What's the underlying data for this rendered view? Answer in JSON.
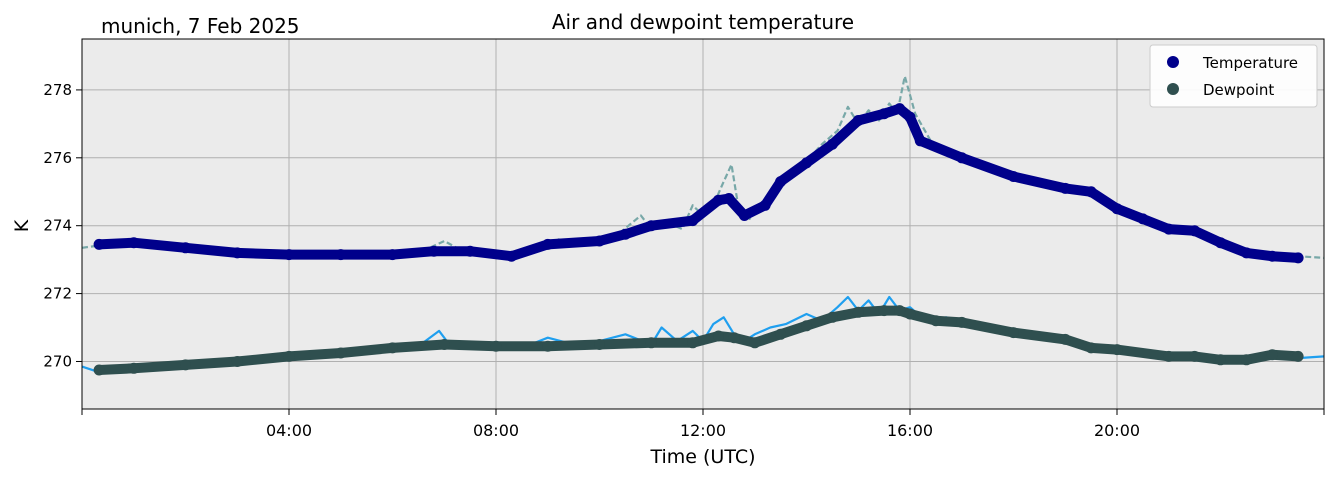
{
  "chart_data": {
    "type": "line",
    "title": "Air and dewpoint temperature",
    "subtitle": "munich, 7 Feb 2025",
    "xlabel": "Time (UTC)",
    "ylabel": "K",
    "xlim": [
      0,
      24
    ],
    "ylim": [
      268.6,
      279.5
    ],
    "x_ticks": [
      {
        "value": 4,
        "label": "04:00"
      },
      {
        "value": 8,
        "label": "08:00"
      },
      {
        "value": 12,
        "label": "12:00"
      },
      {
        "value": 16,
        "label": "16:00"
      },
      {
        "value": 20,
        "label": "20:00"
      }
    ],
    "x_minor_ticks": [
      0,
      24
    ],
    "y_ticks": [
      270,
      272,
      274,
      276,
      278
    ],
    "grid": true,
    "legend_position": "top-right",
    "background_color": "#ebebeb",
    "series": [
      {
        "name": "Temperature",
        "kind": "markers",
        "color": "#00008b",
        "x": [
          0.33,
          1,
          2,
          3,
          4,
          5,
          6,
          6.8,
          7.5,
          8.3,
          9,
          10,
          10.5,
          11,
          11.8,
          12.3,
          12.5,
          12.8,
          13.2,
          13.5,
          14,
          14.5,
          15,
          15.5,
          15.8,
          16,
          16.2,
          17,
          18,
          19,
          19.5,
          20,
          20.5,
          21,
          21.5,
          22,
          22.5,
          23,
          23.5
        ],
        "y": [
          273.45,
          273.5,
          273.35,
          273.2,
          273.15,
          273.15,
          273.15,
          273.25,
          273.25,
          273.1,
          273.45,
          273.55,
          273.75,
          274.0,
          274.15,
          274.75,
          274.8,
          274.3,
          274.6,
          275.3,
          275.85,
          276.4,
          277.1,
          277.3,
          277.45,
          277.2,
          276.5,
          276.0,
          275.45,
          275.1,
          275.0,
          274.5,
          274.2,
          273.9,
          273.85,
          273.5,
          273.2,
          273.1,
          273.05
        ]
      },
      {
        "name": "Dewpoint",
        "kind": "markers",
        "color": "#2f4f4f",
        "x": [
          0.33,
          1,
          2,
          3,
          4,
          5,
          6,
          7,
          8,
          9,
          10,
          11,
          11.8,
          12.3,
          12.6,
          13,
          13.5,
          14,
          14.5,
          15,
          15.5,
          15.8,
          16,
          16.5,
          17,
          18,
          19,
          19.5,
          20,
          21,
          21.5,
          22,
          22.5,
          23,
          23.5
        ],
        "y": [
          269.75,
          269.8,
          269.9,
          270.0,
          270.15,
          270.25,
          270.4,
          270.5,
          270.45,
          270.45,
          270.5,
          270.55,
          270.55,
          270.75,
          270.7,
          270.55,
          270.8,
          271.05,
          271.3,
          271.45,
          271.5,
          271.5,
          271.4,
          271.2,
          271.15,
          270.85,
          270.65,
          270.4,
          270.35,
          270.15,
          270.15,
          270.05,
          270.05,
          270.2,
          270.15
        ]
      },
      {
        "name": "",
        "kind": "raw-line",
        "style": "dashed",
        "color": "#78a8a8",
        "x": [
          0,
          0.5,
          1,
          1.5,
          2,
          3,
          4,
          5,
          6,
          6.5,
          7,
          7.3,
          7.6,
          8,
          8.4,
          8.8,
          9.2,
          9.6,
          10,
          10.4,
          10.8,
          11,
          11.3,
          11.6,
          11.8,
          12,
          12.2,
          12.4,
          12.55,
          12.7,
          12.9,
          13.1,
          13.4,
          13.7,
          14,
          14.3,
          14.6,
          14.8,
          15,
          15.2,
          15.4,
          15.6,
          15.75,
          15.9,
          16.1,
          16.4,
          17,
          18,
          19,
          19.5,
          20,
          20.5,
          21,
          21.5,
          22,
          22.5,
          23,
          23.5,
          24
        ],
        "y": [
          273.35,
          273.45,
          273.55,
          273.5,
          273.4,
          273.2,
          273.15,
          273.15,
          273.15,
          273.2,
          273.55,
          273.3,
          273.2,
          273.15,
          273.1,
          273.4,
          273.6,
          273.5,
          273.6,
          273.8,
          274.3,
          273.9,
          274.1,
          273.9,
          274.6,
          274.3,
          274.6,
          275.3,
          275.8,
          274.4,
          274.2,
          274.5,
          275.0,
          275.6,
          275.9,
          276.4,
          276.8,
          277.5,
          277.0,
          277.4,
          277.1,
          277.6,
          277.3,
          278.4,
          277.3,
          276.5,
          275.9,
          275.5,
          275.1,
          275.0,
          274.5,
          274.2,
          273.9,
          273.9,
          273.5,
          273.2,
          273.15,
          273.1,
          273.05
        ]
      },
      {
        "name": "",
        "kind": "raw-line",
        "style": "solid",
        "color": "#1f9fef",
        "x": [
          0,
          0.3,
          0.6,
          1,
          1.5,
          2,
          3,
          4,
          5,
          6,
          6.5,
          6.9,
          7.1,
          7.5,
          8,
          8.5,
          9,
          9.5,
          10,
          10.5,
          11,
          11.2,
          11.5,
          11.8,
          12,
          12.2,
          12.4,
          12.6,
          12.8,
          13,
          13.3,
          13.6,
          14,
          14.3,
          14.6,
          14.8,
          15,
          15.2,
          15.4,
          15.6,
          15.8,
          16,
          16.3,
          16.7,
          17,
          17.5,
          18,
          18.5,
          19,
          19.5,
          20,
          20.5,
          21,
          21.5,
          22,
          22.5,
          23,
          23.5,
          24
        ],
        "y": [
          269.85,
          269.7,
          269.8,
          269.75,
          269.85,
          269.95,
          270.05,
          270.2,
          270.25,
          270.45,
          270.45,
          270.9,
          270.5,
          270.4,
          270.5,
          270.4,
          270.7,
          270.5,
          270.6,
          270.8,
          270.5,
          271.0,
          270.6,
          270.9,
          270.6,
          271.1,
          271.3,
          270.8,
          270.6,
          270.8,
          271.0,
          271.1,
          271.4,
          271.2,
          271.6,
          271.9,
          271.5,
          271.8,
          271.4,
          271.9,
          271.5,
          271.6,
          271.2,
          271.3,
          271.2,
          271.0,
          270.9,
          270.8,
          270.6,
          270.5,
          270.4,
          270.3,
          270.2,
          270.15,
          270.0,
          270.0,
          270.2,
          270.1,
          270.15
        ]
      }
    ]
  }
}
